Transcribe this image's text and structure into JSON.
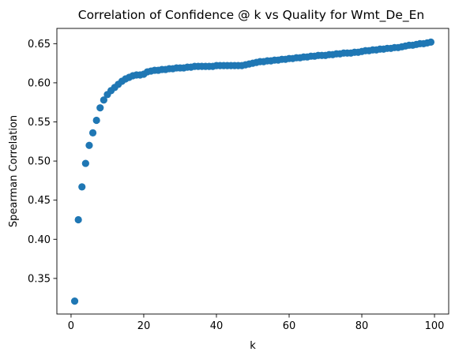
{
  "chart_data": {
    "type": "scatter",
    "title": "Correlation of Confidence @ k vs Quality for Wmt_De_En",
    "xlabel": "k",
    "ylabel": "Spearman Correlation",
    "xlim": [
      -3.9,
      103.9
    ],
    "ylim": [
      0.3045,
      0.6695
    ],
    "xticks": [
      0,
      20,
      40,
      60,
      80,
      100
    ],
    "xtick_labels": [
      "0",
      "20",
      "40",
      "60",
      "80",
      "100"
    ],
    "yticks": [
      0.35,
      0.4,
      0.45,
      0.5,
      0.55,
      0.6,
      0.65
    ],
    "ytick_labels": [
      "0.35",
      "0.40",
      "0.45",
      "0.50",
      "0.55",
      "0.60",
      "0.65"
    ],
    "grid": false,
    "legend": "none",
    "marker_color": "#1f77b4",
    "series": [
      {
        "x": [
          1,
          2,
          3,
          4,
          5,
          6,
          7,
          8,
          9,
          10,
          11,
          12,
          13,
          14,
          15,
          16,
          17,
          18,
          19,
          20,
          21,
          22,
          23,
          24,
          25,
          26,
          27,
          28,
          29,
          30,
          31,
          32,
          33,
          34,
          35,
          36,
          37,
          38,
          39,
          40,
          41,
          42,
          43,
          44,
          45,
          46,
          47,
          48,
          49,
          50,
          51,
          52,
          53,
          54,
          55,
          56,
          57,
          58,
          59,
          60,
          61,
          62,
          63,
          64,
          65,
          66,
          67,
          68,
          69,
          70,
          71,
          72,
          73,
          74,
          75,
          76,
          77,
          78,
          79,
          80,
          81,
          82,
          83,
          84,
          85,
          86,
          87,
          88,
          89,
          90,
          91,
          92,
          93,
          94,
          95,
          96,
          97,
          98,
          99
        ],
        "y": [
          0.321,
          0.425,
          0.467,
          0.497,
          0.52,
          0.536,
          0.552,
          0.568,
          0.578,
          0.585,
          0.59,
          0.594,
          0.598,
          0.602,
          0.605,
          0.607,
          0.609,
          0.61,
          0.61,
          0.611,
          0.614,
          0.615,
          0.616,
          0.616,
          0.617,
          0.617,
          0.618,
          0.618,
          0.619,
          0.619,
          0.619,
          0.62,
          0.62,
          0.621,
          0.621,
          0.621,
          0.621,
          0.621,
          0.621,
          0.622,
          0.622,
          0.622,
          0.622,
          0.622,
          0.622,
          0.622,
          0.622,
          0.623,
          0.624,
          0.625,
          0.626,
          0.627,
          0.627,
          0.628,
          0.628,
          0.629,
          0.629,
          0.63,
          0.63,
          0.631,
          0.631,
          0.632,
          0.632,
          0.633,
          0.633,
          0.634,
          0.634,
          0.635,
          0.635,
          0.635,
          0.636,
          0.636,
          0.637,
          0.637,
          0.638,
          0.638,
          0.638,
          0.639,
          0.639,
          0.64,
          0.641,
          0.641,
          0.642,
          0.642,
          0.643,
          0.643,
          0.644,
          0.644,
          0.645,
          0.645,
          0.646,
          0.647,
          0.648,
          0.648,
          0.649,
          0.65,
          0.65,
          0.651,
          0.652
        ]
      }
    ]
  }
}
